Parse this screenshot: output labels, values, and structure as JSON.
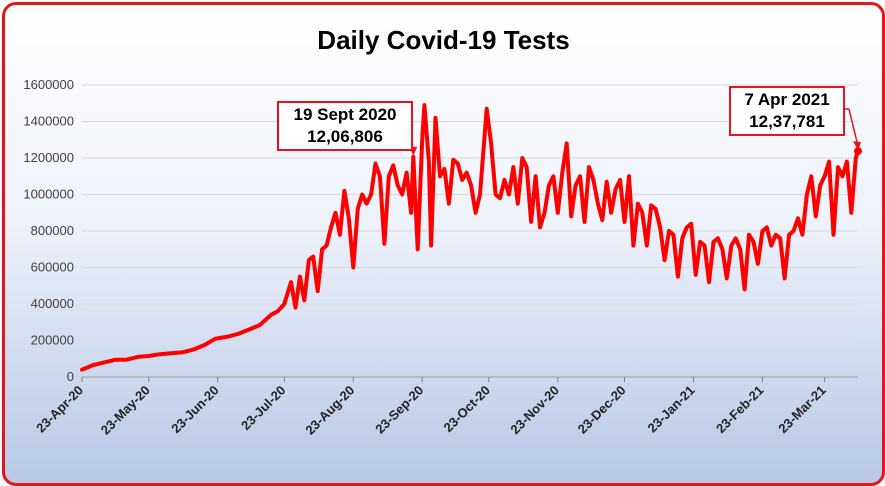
{
  "chart_data": {
    "type": "line",
    "title": "Daily Covid-19 Tests",
    "xlabel": "",
    "ylabel": "",
    "ylim": [
      0,
      1600000
    ],
    "grid": true,
    "legend": "none",
    "line_color": "#ff0000",
    "y_ticks": [
      "0",
      "200000",
      "400000",
      "600000",
      "800000",
      "1000000",
      "1200000",
      "1400000",
      "1600000"
    ],
    "x_ticks": [
      "23-Apr-20",
      "23-May-20",
      "23-Jun-20",
      "23-Jul-20",
      "23-Aug-20",
      "23-Sep-20",
      "23-Oct-20",
      "23-Nov-20",
      "23-Dec-20",
      "23-Jan-21",
      "23-Feb-21",
      "23-Mar-21"
    ],
    "x_start": "2020-04-23",
    "x_end": "2021-04-07",
    "series": [
      {
        "name": "",
        "points": [
          [
            "2020-04-23",
            40000
          ],
          [
            "2020-04-28",
            65000
          ],
          [
            "2020-05-03",
            80000
          ],
          [
            "2020-05-08",
            95000
          ],
          [
            "2020-05-13",
            95000
          ],
          [
            "2020-05-18",
            110000
          ],
          [
            "2020-05-23",
            115000
          ],
          [
            "2020-05-28",
            125000
          ],
          [
            "2020-06-02",
            130000
          ],
          [
            "2020-06-07",
            135000
          ],
          [
            "2020-06-12",
            150000
          ],
          [
            "2020-06-17",
            175000
          ],
          [
            "2020-06-22",
            210000
          ],
          [
            "2020-06-27",
            220000
          ],
          [
            "2020-07-02",
            235000
          ],
          [
            "2020-07-07",
            260000
          ],
          [
            "2020-07-12",
            285000
          ],
          [
            "2020-07-17",
            340000
          ],
          [
            "2020-07-20",
            360000
          ],
          [
            "2020-07-23",
            400000
          ],
          [
            "2020-07-26",
            520000
          ],
          [
            "2020-07-28",
            380000
          ],
          [
            "2020-07-30",
            550000
          ],
          [
            "2020-08-01",
            420000
          ],
          [
            "2020-08-03",
            640000
          ],
          [
            "2020-08-05",
            660000
          ],
          [
            "2020-08-07",
            470000
          ],
          [
            "2020-08-09",
            700000
          ],
          [
            "2020-08-11",
            720000
          ],
          [
            "2020-08-13",
            820000
          ],
          [
            "2020-08-15",
            900000
          ],
          [
            "2020-08-17",
            780000
          ],
          [
            "2020-08-19",
            1020000
          ],
          [
            "2020-08-21",
            870000
          ],
          [
            "2020-08-23",
            600000
          ],
          [
            "2020-08-25",
            920000
          ],
          [
            "2020-08-27",
            1000000
          ],
          [
            "2020-08-29",
            950000
          ],
          [
            "2020-08-31",
            1000000
          ],
          [
            "2020-09-02",
            1170000
          ],
          [
            "2020-09-04",
            1100000
          ],
          [
            "2020-09-06",
            730000
          ],
          [
            "2020-09-08",
            1100000
          ],
          [
            "2020-09-10",
            1160000
          ],
          [
            "2020-09-12",
            1050000
          ],
          [
            "2020-09-14",
            1000000
          ],
          [
            "2020-09-16",
            1120000
          ],
          [
            "2020-09-18",
            900000
          ],
          [
            "2020-09-19",
            1206806
          ],
          [
            "2020-09-21",
            700000
          ],
          [
            "2020-09-23",
            1300000
          ],
          [
            "2020-09-24",
            1490000
          ],
          [
            "2020-09-26",
            1180000
          ],
          [
            "2020-09-27",
            720000
          ],
          [
            "2020-09-29",
            1420000
          ],
          [
            "2020-10-01",
            1100000
          ],
          [
            "2020-10-03",
            1140000
          ],
          [
            "2020-10-05",
            950000
          ],
          [
            "2020-10-07",
            1190000
          ],
          [
            "2020-10-09",
            1170000
          ],
          [
            "2020-10-11",
            1080000
          ],
          [
            "2020-10-13",
            1120000
          ],
          [
            "2020-10-15",
            1050000
          ],
          [
            "2020-10-17",
            900000
          ],
          [
            "2020-10-19",
            1000000
          ],
          [
            "2020-10-22",
            1470000
          ],
          [
            "2020-10-24",
            1280000
          ],
          [
            "2020-10-26",
            1000000
          ],
          [
            "2020-10-28",
            980000
          ],
          [
            "2020-10-30",
            1080000
          ],
          [
            "2020-11-01",
            1000000
          ],
          [
            "2020-11-03",
            1150000
          ],
          [
            "2020-11-05",
            950000
          ],
          [
            "2020-11-07",
            1200000
          ],
          [
            "2020-11-09",
            1150000
          ],
          [
            "2020-11-11",
            850000
          ],
          [
            "2020-11-13",
            1100000
          ],
          [
            "2020-11-15",
            820000
          ],
          [
            "2020-11-17",
            900000
          ],
          [
            "2020-11-19",
            1050000
          ],
          [
            "2020-11-21",
            1100000
          ],
          [
            "2020-11-23",
            900000
          ],
          [
            "2020-11-25",
            1120000
          ],
          [
            "2020-11-27",
            1280000
          ],
          [
            "2020-11-29",
            880000
          ],
          [
            "2020-12-01",
            1050000
          ],
          [
            "2020-12-03",
            1100000
          ],
          [
            "2020-12-05",
            850000
          ],
          [
            "2020-12-07",
            1150000
          ],
          [
            "2020-12-09",
            1080000
          ],
          [
            "2020-12-11",
            950000
          ],
          [
            "2020-12-13",
            860000
          ],
          [
            "2020-12-15",
            1070000
          ],
          [
            "2020-12-17",
            900000
          ],
          [
            "2020-12-19",
            1030000
          ],
          [
            "2020-12-21",
            1080000
          ],
          [
            "2020-12-23",
            850000
          ],
          [
            "2020-12-25",
            1100000
          ],
          [
            "2020-12-27",
            720000
          ],
          [
            "2020-12-29",
            950000
          ],
          [
            "2020-12-31",
            900000
          ],
          [
            "2021-01-02",
            720000
          ],
          [
            "2021-01-04",
            940000
          ],
          [
            "2021-01-06",
            920000
          ],
          [
            "2021-01-08",
            820000
          ],
          [
            "2021-01-10",
            640000
          ],
          [
            "2021-01-12",
            800000
          ],
          [
            "2021-01-14",
            780000
          ],
          [
            "2021-01-16",
            550000
          ],
          [
            "2021-01-18",
            760000
          ],
          [
            "2021-01-20",
            820000
          ],
          [
            "2021-01-22",
            840000
          ],
          [
            "2021-01-24",
            560000
          ],
          [
            "2021-01-26",
            740000
          ],
          [
            "2021-01-28",
            720000
          ],
          [
            "2021-01-30",
            520000
          ],
          [
            "2021-02-01",
            740000
          ],
          [
            "2021-02-03",
            760000
          ],
          [
            "2021-02-05",
            700000
          ],
          [
            "2021-02-07",
            540000
          ],
          [
            "2021-02-09",
            720000
          ],
          [
            "2021-02-11",
            760000
          ],
          [
            "2021-02-13",
            700000
          ],
          [
            "2021-02-15",
            480000
          ],
          [
            "2021-02-17",
            780000
          ],
          [
            "2021-02-19",
            740000
          ],
          [
            "2021-02-21",
            620000
          ],
          [
            "2021-02-23",
            800000
          ],
          [
            "2021-02-25",
            820000
          ],
          [
            "2021-02-27",
            720000
          ],
          [
            "2021-03-01",
            780000
          ],
          [
            "2021-03-03",
            760000
          ],
          [
            "2021-03-05",
            540000
          ],
          [
            "2021-03-07",
            780000
          ],
          [
            "2021-03-09",
            800000
          ],
          [
            "2021-03-11",
            870000
          ],
          [
            "2021-03-13",
            780000
          ],
          [
            "2021-03-15",
            1000000
          ],
          [
            "2021-03-17",
            1100000
          ],
          [
            "2021-03-19",
            880000
          ],
          [
            "2021-03-21",
            1050000
          ],
          [
            "2021-03-23",
            1100000
          ],
          [
            "2021-03-25",
            1180000
          ],
          [
            "2021-03-27",
            780000
          ],
          [
            "2021-03-29",
            1150000
          ],
          [
            "2021-03-31",
            1100000
          ],
          [
            "2021-04-02",
            1180000
          ],
          [
            "2021-04-04",
            900000
          ],
          [
            "2021-04-06",
            1200000
          ],
          [
            "2021-04-07",
            1237781
          ]
        ]
      }
    ],
    "annotations": [
      {
        "date_label": "19 Sept 2020",
        "value_label": "12,06,806",
        "x": "2020-09-19",
        "y": 1206806
      },
      {
        "date_label": "7 Apr 2021",
        "value_label": "12,37,781",
        "x": "2021-04-07",
        "y": 1237781
      }
    ]
  }
}
